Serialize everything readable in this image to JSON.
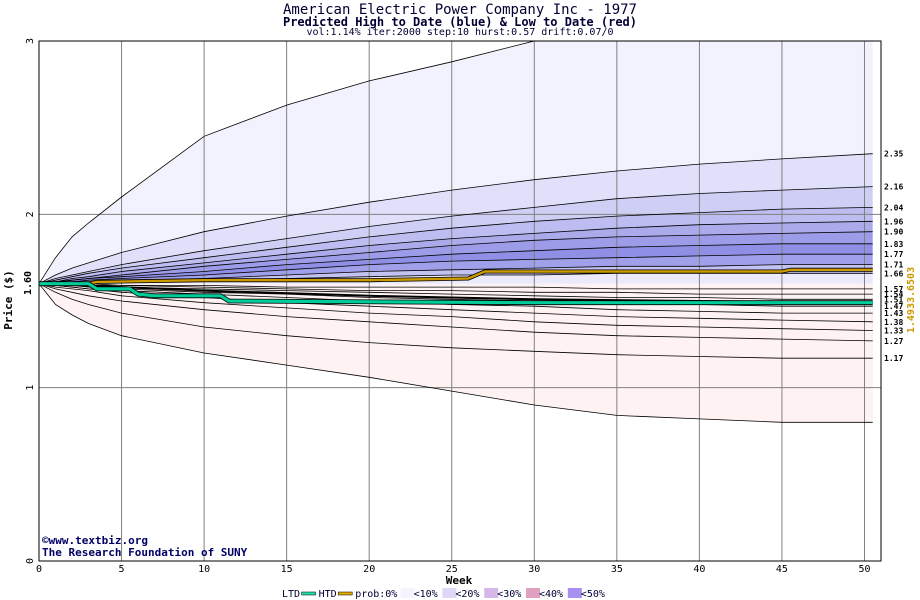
{
  "title": "American Electric Power Company Inc - 1977",
  "subtitle": "Predicted High to Date (blue) &  Low to Date (red)",
  "params": "vol:1.14% iter:2000 step:10 hurst:0.57 drift:0.07/0",
  "credit_url": "www.textbiz.org",
  "credit_org": "The Research Foundation of SUNY",
  "copyright_symbol": "©",
  "right_values": "1.4933.6503",
  "colors": {
    "ltd": "#00cc99",
    "htd": "#cc9900",
    "axis_text": "#000033"
  },
  "legend": {
    "items": [
      {
        "label": "LTD",
        "kind": "line",
        "color": "#22ddaa"
      },
      {
        "label": "HTD",
        "kind": "line",
        "color": "#ddaa00"
      },
      {
        "label": "prob:0%",
        "kind": "text"
      },
      {
        "label": "<10%",
        "kind": "swatch",
        "color": "#f4f4ff"
      },
      {
        "label": "<20%",
        "kind": "swatch",
        "color": "#e0d6f6"
      },
      {
        "label": "<30%",
        "kind": "swatch",
        "color": "#d6b8e8"
      },
      {
        "label": "<40%",
        "kind": "swatch",
        "color": "#e0a0c0"
      },
      {
        "label": "<50%",
        "kind": "swatch",
        "color": "#a890f0"
      }
    ]
  },
  "chart_data": {
    "type": "area",
    "xlabel": "Week",
    "ylabel": "Price ($)",
    "xlim": [
      0,
      51
    ],
    "ylim": [
      0,
      3
    ],
    "x_ticks": [
      0,
      5,
      10,
      15,
      20,
      25,
      30,
      35,
      40,
      45,
      50
    ],
    "y_ticks": [
      0,
      1,
      2,
      3
    ],
    "start_price": 1.6,
    "start_label": "1.60",
    "grid": true,
    "x_knots": [
      0,
      1,
      2,
      3,
      5,
      10,
      15,
      20,
      25,
      30,
      35,
      40,
      45,
      50.5
    ],
    "upper_bands": [
      {
        "name": "0%",
        "end_label": "",
        "values": [
          1.6,
          1.75,
          1.87,
          1.95,
          2.1,
          2.45,
          2.63,
          2.77,
          2.88,
          3.0,
          3.1,
          3.2,
          3.3,
          3.38
        ]
      },
      {
        "name": "10%",
        "end_label": "2.35",
        "values": [
          1.6,
          1.65,
          1.69,
          1.72,
          1.78,
          1.9,
          1.99,
          2.07,
          2.14,
          2.2,
          2.25,
          2.29,
          2.32,
          2.35
        ]
      },
      {
        "name": "20%",
        "end_label": "2.16",
        "values": [
          1.6,
          1.63,
          1.65,
          1.67,
          1.71,
          1.79,
          1.86,
          1.93,
          1.99,
          2.04,
          2.09,
          2.12,
          2.14,
          2.16
        ]
      },
      {
        "name": "30%",
        "end_label": "2.04",
        "values": [
          1.6,
          1.62,
          1.64,
          1.66,
          1.69,
          1.75,
          1.81,
          1.87,
          1.92,
          1.96,
          1.99,
          2.01,
          2.03,
          2.04
        ]
      },
      {
        "name": "35%",
        "end_label": "1.96",
        "values": [
          1.6,
          1.61,
          1.63,
          1.64,
          1.67,
          1.72,
          1.77,
          1.82,
          1.86,
          1.89,
          1.92,
          1.94,
          1.95,
          1.96
        ]
      },
      {
        "name": "40%",
        "end_label": "1.90",
        "values": [
          1.6,
          1.61,
          1.62,
          1.63,
          1.65,
          1.7,
          1.74,
          1.78,
          1.82,
          1.85,
          1.87,
          1.88,
          1.89,
          1.9
        ]
      },
      {
        "name": "45%",
        "end_label": "1.83",
        "values": [
          1.6,
          1.61,
          1.62,
          1.63,
          1.64,
          1.67,
          1.71,
          1.74,
          1.77,
          1.79,
          1.81,
          1.82,
          1.83,
          1.83
        ]
      },
      {
        "name": "50%",
        "end_label": "1.77",
        "values": [
          1.6,
          1.6,
          1.61,
          1.62,
          1.63,
          1.65,
          1.68,
          1.71,
          1.73,
          1.74,
          1.75,
          1.76,
          1.77,
          1.77
        ]
      },
      {
        "name": "55%",
        "end_label": "1.71",
        "values": [
          1.6,
          1.6,
          1.61,
          1.61,
          1.62,
          1.63,
          1.65,
          1.67,
          1.68,
          1.69,
          1.7,
          1.7,
          1.71,
          1.71
        ]
      },
      {
        "name": "60%",
        "end_label": "1.66",
        "values": [
          1.6,
          1.6,
          1.6,
          1.61,
          1.61,
          1.62,
          1.63,
          1.64,
          1.65,
          1.65,
          1.66,
          1.66,
          1.66,
          1.66
        ]
      }
    ],
    "lower_bands": [
      {
        "name": "60%",
        "end_label": "1.57",
        "values": [
          1.6,
          1.6,
          1.6,
          1.6,
          1.59,
          1.59,
          1.58,
          1.58,
          1.58,
          1.58,
          1.57,
          1.57,
          1.57,
          1.57
        ]
      },
      {
        "name": "55%",
        "end_label": "1.54",
        "values": [
          1.6,
          1.6,
          1.6,
          1.59,
          1.59,
          1.58,
          1.57,
          1.56,
          1.56,
          1.55,
          1.55,
          1.54,
          1.54,
          1.54
        ]
      },
      {
        "name": "50%",
        "end_label": "1.51",
        "values": [
          1.6,
          1.6,
          1.59,
          1.59,
          1.58,
          1.57,
          1.56,
          1.55,
          1.54,
          1.53,
          1.52,
          1.52,
          1.51,
          1.51
        ]
      },
      {
        "name": "45%",
        "end_label": "1.47",
        "values": [
          1.6,
          1.59,
          1.59,
          1.58,
          1.57,
          1.55,
          1.54,
          1.52,
          1.51,
          1.5,
          1.49,
          1.48,
          1.47,
          1.47
        ]
      },
      {
        "name": "40%",
        "end_label": "1.43",
        "values": [
          1.6,
          1.59,
          1.58,
          1.57,
          1.56,
          1.54,
          1.52,
          1.5,
          1.48,
          1.47,
          1.45,
          1.44,
          1.43,
          1.43
        ]
      },
      {
        "name": "35%",
        "end_label": "1.38",
        "values": [
          1.6,
          1.59,
          1.58,
          1.57,
          1.55,
          1.52,
          1.49,
          1.47,
          1.45,
          1.43,
          1.41,
          1.4,
          1.39,
          1.38
        ]
      },
      {
        "name": "30%",
        "end_label": "1.33",
        "values": [
          1.6,
          1.58,
          1.57,
          1.56,
          1.53,
          1.49,
          1.46,
          1.43,
          1.41,
          1.38,
          1.36,
          1.35,
          1.34,
          1.33
        ]
      },
      {
        "name": "20%",
        "end_label": "1.27",
        "values": [
          1.6,
          1.57,
          1.55,
          1.53,
          1.5,
          1.45,
          1.41,
          1.38,
          1.35,
          1.32,
          1.3,
          1.29,
          1.28,
          1.27
        ]
      },
      {
        "name": "10%",
        "end_label": "1.17",
        "values": [
          1.6,
          1.55,
          1.51,
          1.48,
          1.43,
          1.35,
          1.3,
          1.26,
          1.23,
          1.21,
          1.19,
          1.18,
          1.17,
          1.17
        ]
      },
      {
        "name": "0%",
        "end_label": "",
        "values": [
          1.6,
          1.48,
          1.42,
          1.37,
          1.3,
          1.2,
          1.13,
          1.06,
          0.98,
          0.9,
          0.84,
          0.82,
          0.8,
          0.8
        ]
      }
    ],
    "htd_series": {
      "x": [
        0,
        3,
        3.5,
        10,
        20,
        26,
        26.5,
        27,
        45,
        45.5,
        50.5
      ],
      "y": [
        1.6,
        1.6,
        1.61,
        1.62,
        1.62,
        1.63,
        1.65,
        1.67,
        1.67,
        1.68,
        1.68
      ]
    },
    "ltd_series": {
      "x": [
        0,
        3,
        3.5,
        5.5,
        6,
        7,
        11,
        11.5,
        30,
        50.5
      ],
      "y": [
        1.6,
        1.6,
        1.57,
        1.57,
        1.54,
        1.53,
        1.53,
        1.5,
        1.49,
        1.49
      ]
    },
    "median_series": {
      "x": [
        0,
        10,
        20,
        30,
        40,
        50.5
      ],
      "y": [
        1.6,
        1.56,
        1.53,
        1.51,
        1.5,
        1.49
      ]
    }
  }
}
